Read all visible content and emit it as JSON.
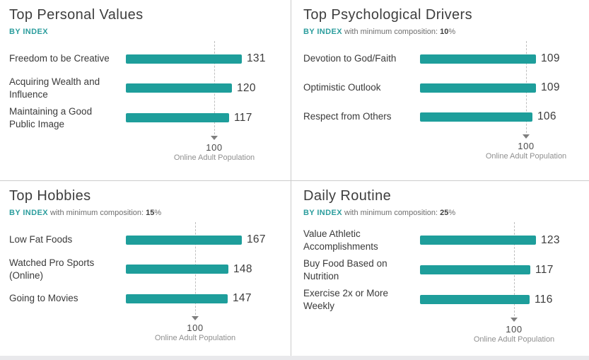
{
  "colors": {
    "bar_teal": "#1e9e9b",
    "accent_teal": "#2b9d9d",
    "divider_gray": "#cccccc",
    "reference_line_gray": "#bfbfbf"
  },
  "chart_data": [
    {
      "type": "bar",
      "orientation": "horizontal",
      "title": "Top Personal Values",
      "categories": [
        "Freedom to be Creative",
        "Acquiring Wealth and Influence",
        "Maintaining a Good Public Image"
      ],
      "values": [
        131,
        120,
        117
      ],
      "xlim": [
        0,
        131
      ],
      "grid": false,
      "reference_line": {
        "value": 100,
        "label": "Online Adult Population"
      }
    },
    {
      "type": "bar",
      "orientation": "horizontal",
      "title": "Top Psychological Drivers",
      "categories": [
        "Devotion to God/Faith",
        "Optimistic Outlook",
        "Respect from Others"
      ],
      "values": [
        109,
        109,
        106
      ],
      "xlim": [
        0,
        109
      ],
      "grid": false,
      "reference_line": {
        "value": 100,
        "label": "Online Adult Population"
      }
    },
    {
      "type": "bar",
      "orientation": "horizontal",
      "title": "Top Hobbies",
      "categories": [
        "Low Fat Foods",
        "Watched Pro Sports (Online)",
        "Going to Movies"
      ],
      "values": [
        167,
        148,
        147
      ],
      "xlim": [
        0,
        167
      ],
      "grid": false,
      "reference_line": {
        "value": 100,
        "label": "Online Adult Population"
      }
    },
    {
      "type": "bar",
      "orientation": "horizontal",
      "title": "Daily Routine",
      "categories": [
        "Value Athletic Accomplishments",
        "Buy Food Based on Nutrition",
        "Exercise 2x or More Weekly"
      ],
      "values": [
        123,
        117,
        116
      ],
      "xlim": [
        0,
        123
      ],
      "grid": false,
      "reference_line": {
        "value": 100,
        "label": "Online Adult Population"
      }
    }
  ],
  "panels": [
    {
      "subtitle": {
        "index_label": "BY INDEX"
      }
    },
    {
      "subtitle": {
        "index_label": "BY INDEX",
        "composition_text": "with minimum composition:",
        "composition_value": "10",
        "percent_sign": "%"
      }
    },
    {
      "subtitle": {
        "index_label": "BY INDEX",
        "composition_text": "with minimum composition:",
        "composition_value": "15",
        "percent_sign": "%"
      }
    },
    {
      "subtitle": {
        "index_label": "BY INDEX",
        "composition_text": "with minimum composition:",
        "composition_value": "25",
        "percent_sign": "%"
      }
    }
  ]
}
